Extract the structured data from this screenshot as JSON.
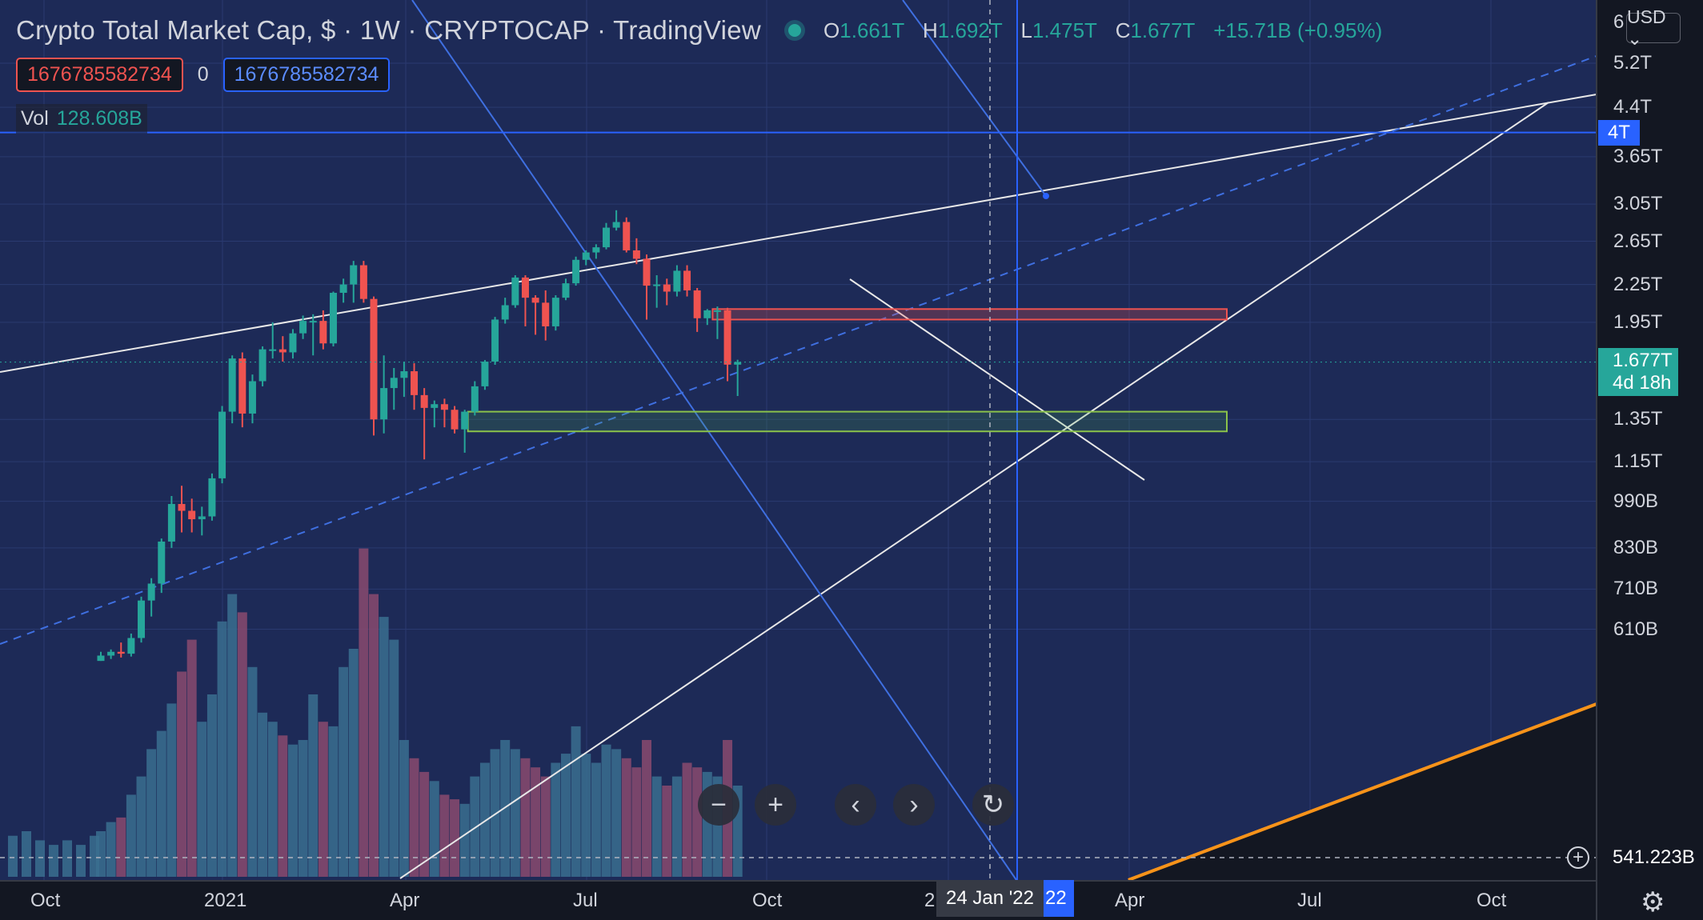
{
  "header": {
    "title": "Crypto Total Market Cap, $ · 1W · CRYPTOCAP · TradingView",
    "ohlc": {
      "o_label": "O",
      "o": "1.661T",
      "h_label": "H",
      "h": "1.692T",
      "l_label": "L",
      "l": "1.475T",
      "c_label": "C",
      "c": "1.677T",
      "change": "+15.71B (+0.95%)"
    }
  },
  "indicator": {
    "left_value": "1676785582734",
    "middle": "0",
    "right_value": "1676785582734"
  },
  "volume": {
    "label": "Vol",
    "value": "128.608B"
  },
  "currency": {
    "label": "USD ⌄",
    "top_tick": "6"
  },
  "price_axis": {
    "ticks": [
      "5.2T",
      "4.4T",
      "3.65T",
      "3.05T",
      "2.65T",
      "2.25T",
      "1.95T",
      "1.35T",
      "1.15T",
      "990B",
      "830B",
      "710B",
      "610B"
    ]
  },
  "labels": {
    "level_4t": "4T",
    "current_price": "1.677T",
    "countdown": "4d 18h",
    "crosshair_price": "541.223B",
    "crosshair_date": "24 Jan '22",
    "date_tail": "22"
  },
  "time_axis": {
    "labels": [
      "Oct",
      "2021",
      "Apr",
      "Jul",
      "Oct",
      "2",
      "Apr",
      "Jul",
      "Oct"
    ]
  },
  "nav_icons": [
    "zoom-out-icon",
    "zoom-in-icon",
    "scroll-left-icon",
    "scroll-right-icon",
    "reset-icon"
  ],
  "colors": {
    "bg": "#1d2a57",
    "up": "#26a69a",
    "down": "#ef5350",
    "line_blue": "#2962ff",
    "line_white": "#e8e8e8",
    "orange": "#f7931a",
    "grid": "#2a3a70"
  },
  "chart_data": {
    "type": "candlestick",
    "timeframe": "1W",
    "ylim": [
      541,
      6000
    ],
    "y_scale": "log",
    "units": "B",
    "candles": [
      {
        "o": 541,
        "h": 560,
        "l": 541,
        "c": 552,
        "v": 0.1
      },
      {
        "o": 552,
        "h": 565,
        "l": 545,
        "c": 560,
        "v": 0.12
      },
      {
        "o": 560,
        "h": 580,
        "l": 548,
        "c": 556,
        "v": 0.13
      },
      {
        "o": 556,
        "h": 600,
        "l": 550,
        "c": 590,
        "v": 0.18
      },
      {
        "o": 590,
        "h": 690,
        "l": 580,
        "c": 680,
        "v": 0.22
      },
      {
        "o": 680,
        "h": 740,
        "l": 640,
        "c": 725,
        "v": 0.28
      },
      {
        "o": 725,
        "h": 860,
        "l": 700,
        "c": 850,
        "v": 0.32
      },
      {
        "o": 850,
        "h": 1010,
        "l": 830,
        "c": 980,
        "v": 0.38
      },
      {
        "o": 980,
        "h": 1050,
        "l": 880,
        "c": 955,
        "v": 0.45
      },
      {
        "o": 955,
        "h": 1000,
        "l": 880,
        "c": 925,
        "v": 0.52
      },
      {
        "o": 925,
        "h": 970,
        "l": 870,
        "c": 935,
        "v": 0.34
      },
      {
        "o": 935,
        "h": 1100,
        "l": 920,
        "c": 1080,
        "v": 0.4
      },
      {
        "o": 1080,
        "h": 1420,
        "l": 1060,
        "c": 1390,
        "v": 0.56
      },
      {
        "o": 1390,
        "h": 1720,
        "l": 1330,
        "c": 1700,
        "v": 0.62
      },
      {
        "o": 1700,
        "h": 1740,
        "l": 1310,
        "c": 1380,
        "v": 0.58
      },
      {
        "o": 1380,
        "h": 1600,
        "l": 1330,
        "c": 1560,
        "v": 0.46
      },
      {
        "o": 1560,
        "h": 1780,
        "l": 1530,
        "c": 1760,
        "v": 0.36
      },
      {
        "o": 1760,
        "h": 1950,
        "l": 1700,
        "c": 1760,
        "v": 0.34
      },
      {
        "o": 1760,
        "h": 1850,
        "l": 1680,
        "c": 1740,
        "v": 0.31
      },
      {
        "o": 1740,
        "h": 1900,
        "l": 1700,
        "c": 1870,
        "v": 0.29
      },
      {
        "o": 1870,
        "h": 2000,
        "l": 1830,
        "c": 1960,
        "v": 0.3
      },
      {
        "o": 1960,
        "h": 2010,
        "l": 1720,
        "c": 1960,
        "v": 0.4
      },
      {
        "o": 1960,
        "h": 2040,
        "l": 1760,
        "c": 1800,
        "v": 0.34
      },
      {
        "o": 1800,
        "h": 2190,
        "l": 1780,
        "c": 2180,
        "v": 0.33
      },
      {
        "o": 2180,
        "h": 2300,
        "l": 2100,
        "c": 2250,
        "v": 0.46
      },
      {
        "o": 2250,
        "h": 2460,
        "l": 2100,
        "c": 2420,
        "v": 0.5
      },
      {
        "o": 2420,
        "h": 2460,
        "l": 2100,
        "c": 2130,
        "v": 0.72
      },
      {
        "o": 2130,
        "h": 2150,
        "l": 1270,
        "c": 1350,
        "v": 0.62
      },
      {
        "o": 1350,
        "h": 1720,
        "l": 1280,
        "c": 1520,
        "v": 0.57
      },
      {
        "o": 1520,
        "h": 1640,
        "l": 1400,
        "c": 1580,
        "v": 0.52
      },
      {
        "o": 1580,
        "h": 1680,
        "l": 1470,
        "c": 1620,
        "v": 0.3
      },
      {
        "o": 1620,
        "h": 1670,
        "l": 1400,
        "c": 1480,
        "v": 0.26
      },
      {
        "o": 1480,
        "h": 1520,
        "l": 1160,
        "c": 1410,
        "v": 0.23
      },
      {
        "o": 1410,
        "h": 1450,
        "l": 1310,
        "c": 1430,
        "v": 0.21
      },
      {
        "o": 1430,
        "h": 1460,
        "l": 1310,
        "c": 1400,
        "v": 0.18
      },
      {
        "o": 1400,
        "h": 1420,
        "l": 1280,
        "c": 1300,
        "v": 0.17
      },
      {
        "o": 1300,
        "h": 1400,
        "l": 1190,
        "c": 1390,
        "v": 0.16
      },
      {
        "o": 1390,
        "h": 1560,
        "l": 1370,
        "c": 1530,
        "v": 0.22
      },
      {
        "o": 1530,
        "h": 1690,
        "l": 1510,
        "c": 1680,
        "v": 0.25
      },
      {
        "o": 1680,
        "h": 1990,
        "l": 1660,
        "c": 1970,
        "v": 0.28
      },
      {
        "o": 1970,
        "h": 2140,
        "l": 1940,
        "c": 2080,
        "v": 0.3
      },
      {
        "o": 2080,
        "h": 2330,
        "l": 2060,
        "c": 2310,
        "v": 0.28
      },
      {
        "o": 2310,
        "h": 2330,
        "l": 1920,
        "c": 2140,
        "v": 0.26
      },
      {
        "o": 2140,
        "h": 2160,
        "l": 1860,
        "c": 2100,
        "v": 0.24
      },
      {
        "o": 2100,
        "h": 2200,
        "l": 1820,
        "c": 1920,
        "v": 0.22
      },
      {
        "o": 1920,
        "h": 2160,
        "l": 1890,
        "c": 2140,
        "v": 0.25
      },
      {
        "o": 2140,
        "h": 2300,
        "l": 2120,
        "c": 2260,
        "v": 0.27
      },
      {
        "o": 2260,
        "h": 2500,
        "l": 2240,
        "c": 2470,
        "v": 0.33
      },
      {
        "o": 2470,
        "h": 2560,
        "l": 2420,
        "c": 2540,
        "v": 0.27
      },
      {
        "o": 2540,
        "h": 2620,
        "l": 2480,
        "c": 2590,
        "v": 0.25
      },
      {
        "o": 2590,
        "h": 2840,
        "l": 2570,
        "c": 2790,
        "v": 0.29
      },
      {
        "o": 2790,
        "h": 2980,
        "l": 2760,
        "c": 2850,
        "v": 0.28
      },
      {
        "o": 2850,
        "h": 2900,
        "l": 2540,
        "c": 2560,
        "v": 0.26
      },
      {
        "o": 2560,
        "h": 2680,
        "l": 2430,
        "c": 2480,
        "v": 0.24
      },
      {
        "o": 2480,
        "h": 2520,
        "l": 1970,
        "c": 2240,
        "v": 0.3
      },
      {
        "o": 2240,
        "h": 2330,
        "l": 2060,
        "c": 2250,
        "v": 0.22
      },
      {
        "o": 2250,
        "h": 2300,
        "l": 2080,
        "c": 2190,
        "v": 0.2
      },
      {
        "o": 2190,
        "h": 2420,
        "l": 2150,
        "c": 2370,
        "v": 0.22
      },
      {
        "o": 2370,
        "h": 2420,
        "l": 2150,
        "c": 2200,
        "v": 0.25
      },
      {
        "o": 2200,
        "h": 2220,
        "l": 1880,
        "c": 1980,
        "v": 0.24
      },
      {
        "o": 1980,
        "h": 2050,
        "l": 1930,
        "c": 2040,
        "v": 0.23
      },
      {
        "o": 2040,
        "h": 2070,
        "l": 1830,
        "c": 2040,
        "v": 0.22
      },
      {
        "o": 2040,
        "h": 2060,
        "l": 1560,
        "c": 1661,
        "v": 0.3
      },
      {
        "o": 1661,
        "h": 1692,
        "l": 1475,
        "c": 1677,
        "v": 0.2
      }
    ],
    "zones": [
      {
        "kind": "resistance",
        "from": 1970,
        "to": 2050
      },
      {
        "kind": "support",
        "from": 1290,
        "to": 1390
      }
    ],
    "levels": [
      4000
    ]
  }
}
